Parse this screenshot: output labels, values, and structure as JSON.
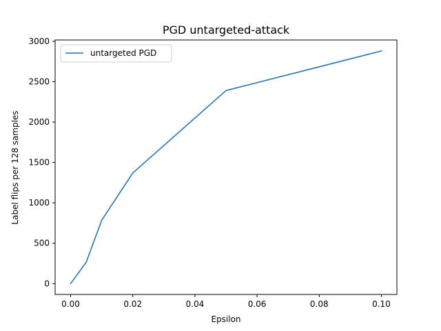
{
  "chart_data": {
    "type": "line",
    "title": "PGD untargeted-attack",
    "xlabel": "Epsilon",
    "ylabel": "Label flips per 128 samples",
    "xlim": [
      -0.005,
      0.105
    ],
    "ylim": [
      -134,
      3016
    ],
    "xticks": [
      0.0,
      0.02,
      0.04,
      0.06,
      0.08,
      0.1
    ],
    "xtick_labels": [
      "0.00",
      "0.02",
      "0.04",
      "0.06",
      "0.08",
      "0.10"
    ],
    "yticks": [
      0,
      500,
      1000,
      1500,
      2000,
      2500,
      3000
    ],
    "ytick_labels": [
      "0",
      "500",
      "1000",
      "1500",
      "2000",
      "2500",
      "3000"
    ],
    "grid": false,
    "legend_position": "upper-left",
    "series": [
      {
        "name": "untargeted PGD",
        "color": "#1f77b4",
        "x": [
          0.0,
          0.005,
          0.01,
          0.02,
          0.05,
          0.1
        ],
        "y": [
          0,
          265,
          785,
          1370,
          2390,
          2880
        ]
      }
    ]
  }
}
